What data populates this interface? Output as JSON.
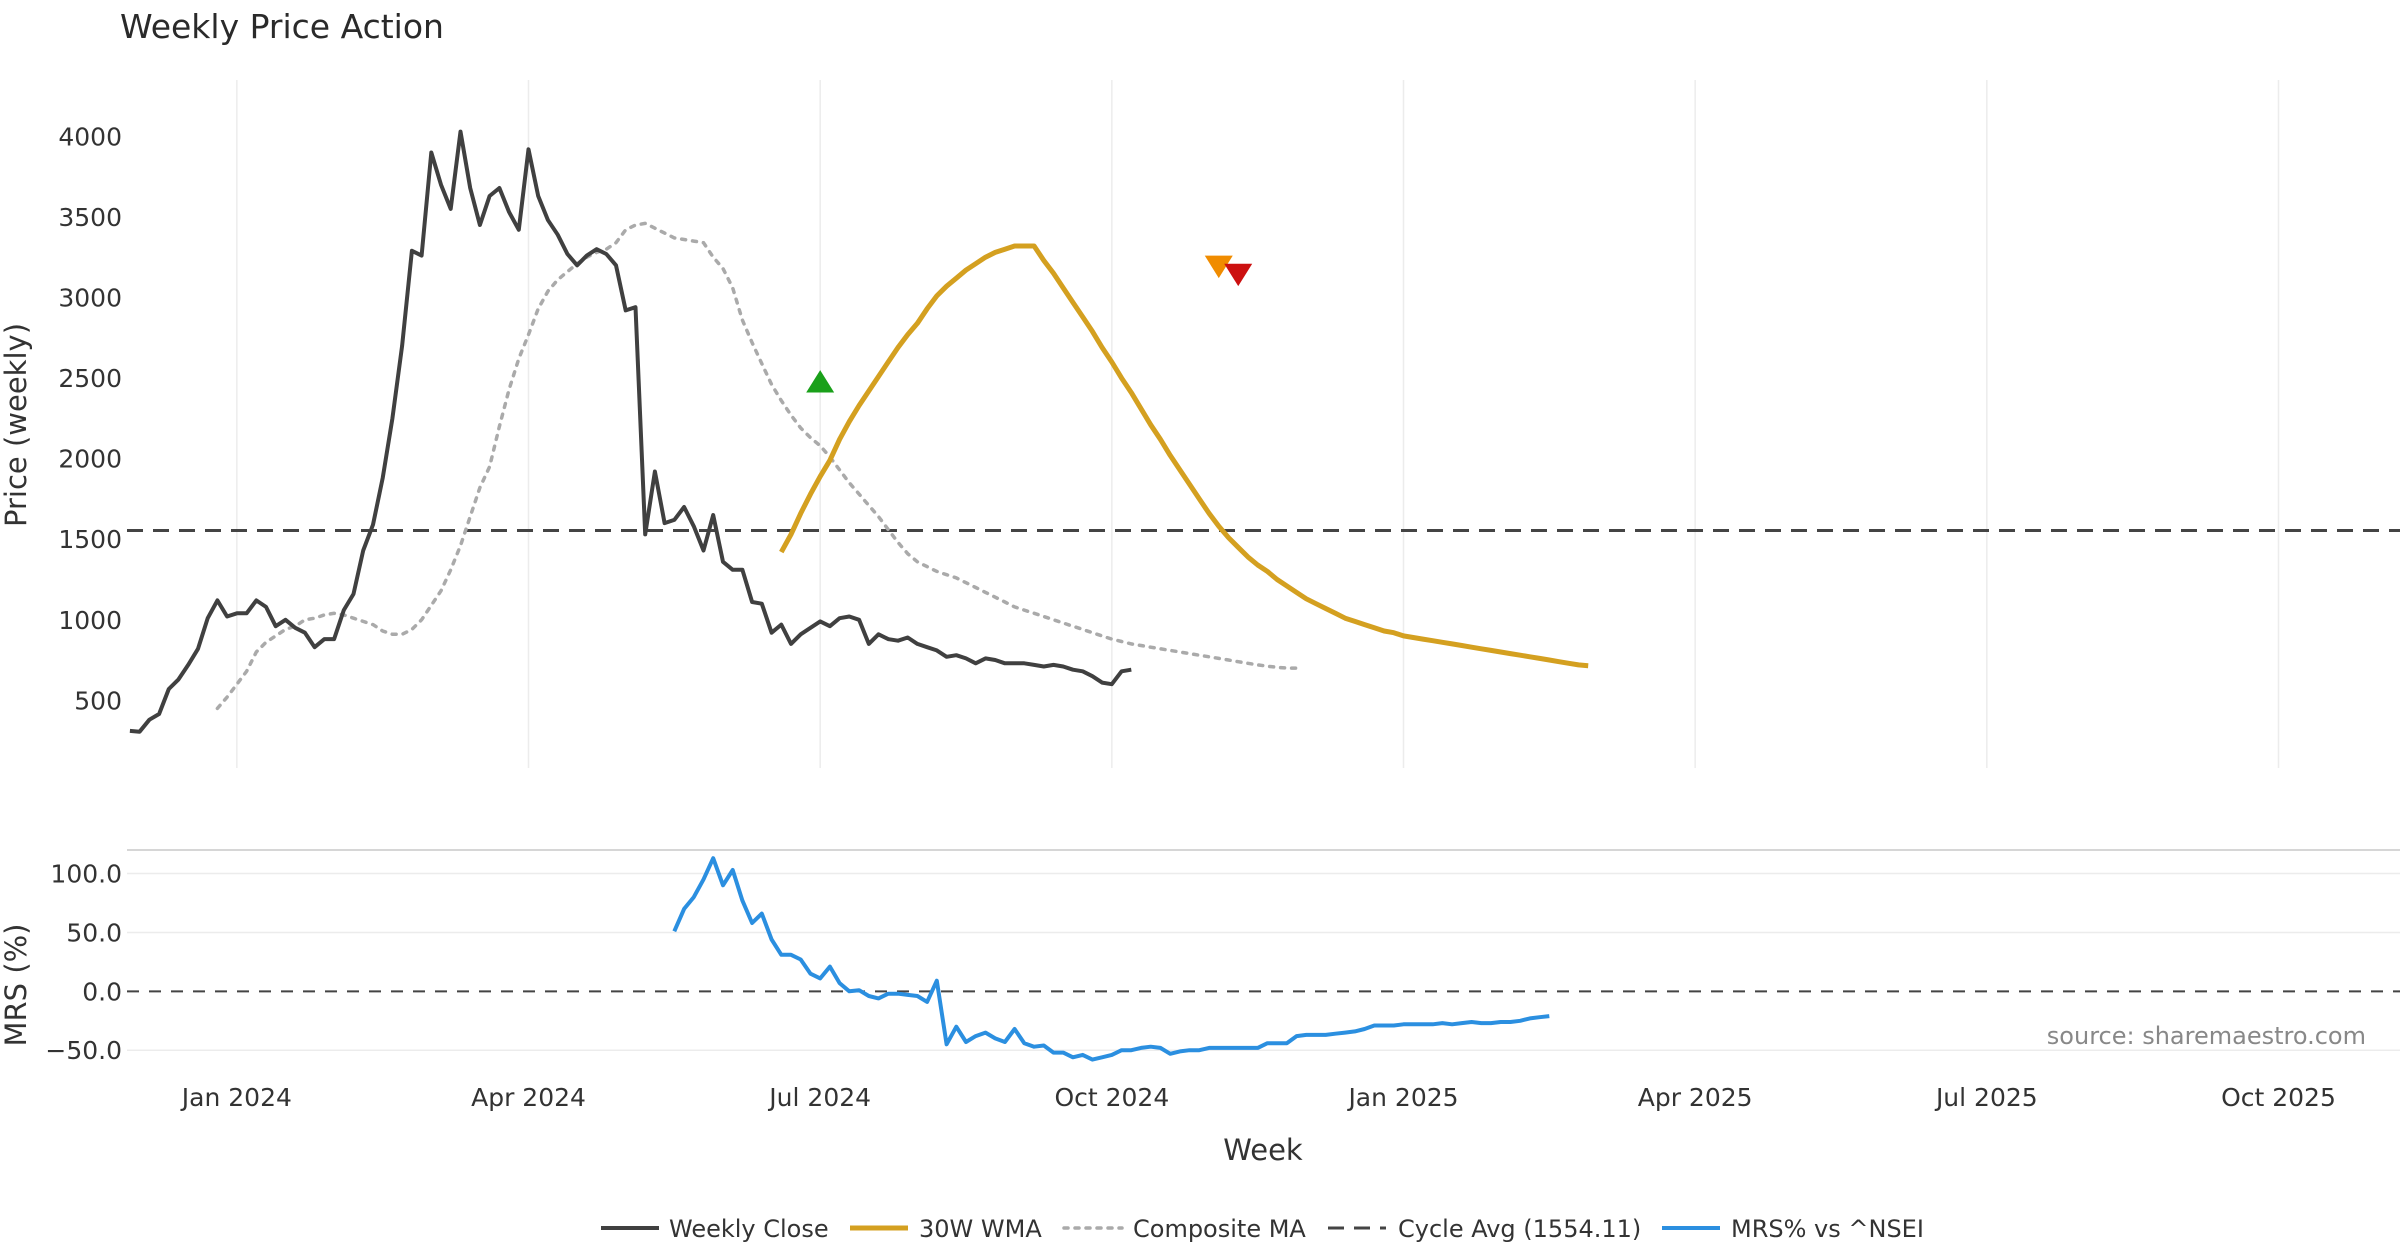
{
  "chart_data": {
    "type": "line",
    "title": "Weekly Price Action",
    "source_note": "source: sharemaestro.com",
    "xlabel": "Week",
    "x_tick_labels": [
      "Jan 2024",
      "Apr 2024",
      "Jul 2024",
      "Oct 2024",
      "Jan 2025",
      "Apr 2025",
      "Jul 2025",
      "Oct 2025"
    ],
    "x_tick_weeks": [
      6,
      36,
      66,
      96,
      126,
      156,
      186,
      216
    ],
    "x_range_weeks": [
      -5.3,
      228.5
    ],
    "price_panel": {
      "ylabel": "Price (weekly)",
      "ylim": [
        80,
        4350
      ],
      "y_ticks": [
        500,
        1000,
        1500,
        2000,
        2500,
        3000,
        3500,
        4000
      ],
      "cycle_avg": 1554.11,
      "series": [
        {
          "name": "Weekly Close",
          "color": "#404040",
          "start_week": -5,
          "values": [
            310,
            305,
            380,
            415,
            570,
            630,
            720,
            820,
            1010,
            1120,
            1020,
            1040,
            1040,
            1120,
            1080,
            960,
            1000,
            950,
            920,
            830,
            880,
            880,
            1060,
            1160,
            1430,
            1590,
            1880,
            2250,
            2700,
            3290,
            3260,
            3900,
            3700,
            3550,
            4030,
            3680,
            3450,
            3630,
            3680,
            3530,
            3420,
            3920,
            3630,
            3480,
            3390,
            3270,
            3200,
            3260,
            3300,
            3270,
            3200,
            2920,
            2940,
            1530,
            1920,
            1600,
            1620,
            1700,
            1580,
            1430,
            1650,
            1360,
            1310,
            1310,
            1110,
            1100,
            920,
            970,
            850,
            910,
            950,
            990,
            960,
            1010,
            1020,
            1000,
            850,
            910,
            880,
            870,
            890,
            850,
            830,
            810,
            770,
            780,
            760,
            730,
            760,
            750,
            730,
            730,
            730,
            720,
            710,
            720,
            710,
            690,
            680,
            650,
            610,
            600,
            680,
            690
          ]
        },
        {
          "name": "30W WMA",
          "color": "#d4a020",
          "start_week": 62,
          "values": [
            1420,
            1530,
            1660,
            1780,
            1890,
            1990,
            2120,
            2230,
            2330,
            2420,
            2510,
            2600,
            2690,
            2770,
            2840,
            2930,
            3010,
            3070,
            3120,
            3170,
            3210,
            3250,
            3280,
            3300,
            3320,
            3320,
            3320,
            3230,
            3150,
            3060,
            2970,
            2880,
            2790,
            2690,
            2600,
            2500,
            2410,
            2310,
            2210,
            2120,
            2020,
            1930,
            1840,
            1750,
            1660,
            1580,
            1510,
            1450,
            1390,
            1340,
            1300,
            1250,
            1210,
            1170,
            1130,
            1100,
            1070,
            1040,
            1010,
            990,
            970,
            950,
            930,
            920,
            900,
            890,
            880,
            870,
            860,
            850,
            840,
            830,
            820,
            810,
            800,
            790,
            780,
            770,
            760,
            750,
            740,
            730,
            720,
            715
          ]
        },
        {
          "name": "Composite MA",
          "color": "#aaaaaa",
          "start_week": 4,
          "values": [
            450,
            520,
            600,
            680,
            800,
            860,
            900,
            940,
            960,
            1000,
            1010,
            1030,
            1040,
            1030,
            1010,
            990,
            970,
            930,
            910,
            910,
            940,
            1000,
            1090,
            1180,
            1310,
            1460,
            1640,
            1820,
            1950,
            2200,
            2430,
            2620,
            2770,
            2930,
            3040,
            3110,
            3160,
            3210,
            3250,
            3280,
            3300,
            3340,
            3420,
            3450,
            3460,
            3430,
            3400,
            3370,
            3360,
            3350,
            3340,
            3250,
            3180,
            3060,
            2860,
            2720,
            2590,
            2460,
            2360,
            2270,
            2190,
            2130,
            2080,
            2010,
            1930,
            1850,
            1780,
            1710,
            1640,
            1560,
            1480,
            1410,
            1360,
            1330,
            1300,
            1280,
            1260,
            1230,
            1200,
            1170,
            1140,
            1110,
            1080,
            1060,
            1040,
            1020,
            1000,
            980,
            960,
            940,
            920,
            900,
            880,
            865,
            850,
            840,
            830,
            820,
            810,
            800,
            790,
            780,
            770,
            760,
            750,
            740,
            730,
            720,
            712,
            705,
            700,
            700
          ]
        },
        {
          "name": "Cycle Avg (1554.11)",
          "color": "#444444",
          "style": "dashed",
          "constant": 1554.11
        }
      ],
      "markers": [
        {
          "type": "buy",
          "week": 66,
          "value": 2460,
          "color": "#1aa01a"
        },
        {
          "type": "sell",
          "week": 107,
          "value": 3210,
          "color": "#f08c00"
        },
        {
          "type": "sell",
          "week": 109,
          "value": 3160,
          "color": "#cc1010"
        }
      ]
    },
    "mrs_panel": {
      "ylabel": "MRS (%)",
      "ylim": [
        -60,
        120
      ],
      "y_ticks": [
        100.0,
        50.0,
        0.0,
        -50.0
      ],
      "y_tick_labels": [
        "100.0",
        "50.0",
        "0.0",
        "−50.0"
      ],
      "zero_line": 0,
      "series": [
        {
          "name": "MRS% vs ^NSEI",
          "color": "#2b8fe0",
          "start_week": 51,
          "values": [
            51,
            70,
            80,
            95,
            113,
            90,
            103,
            77,
            58,
            66,
            44,
            31,
            31,
            27,
            15,
            11,
            21,
            7,
            0,
            1,
            -4,
            -6,
            -2,
            -2,
            -3,
            -4,
            -9,
            9,
            -45,
            -30,
            -43,
            -38,
            -35,
            -40,
            -43,
            -32,
            -44,
            -47,
            -46,
            -52,
            -52,
            -56,
            -54,
            -58,
            -56,
            -54,
            -50,
            -50,
            -48,
            -47,
            -48,
            -53,
            -51,
            -50,
            -50,
            -48,
            -48,
            -48,
            -48,
            -48,
            -48,
            -44,
            -44,
            -44,
            -38,
            -37,
            -37,
            -37,
            -36,
            -35,
            -34,
            -32,
            -29,
            -29,
            -29,
            -28,
            -28,
            -28,
            -28,
            -27,
            -28,
            -27,
            -26,
            -27,
            -27,
            -26,
            -26,
            -25,
            -23,
            -22,
            -21
          ]
        }
      ]
    },
    "legend": {
      "placement": "bottom-center",
      "entries": [
        "Weekly Close",
        "30W WMA",
        "Composite MA",
        "Cycle Avg (1554.11)",
        "MRS% vs ^NSEI"
      ]
    }
  }
}
